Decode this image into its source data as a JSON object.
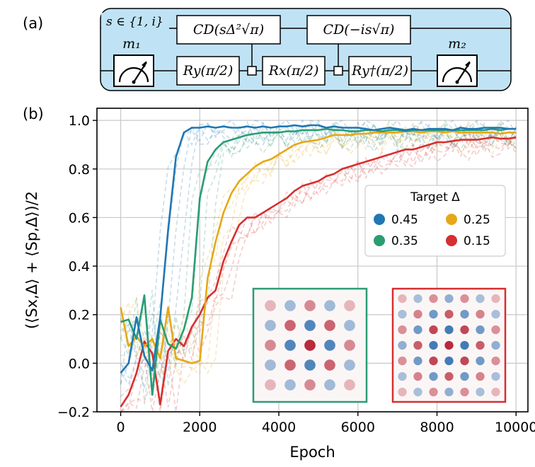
{
  "panel_a": {
    "label": "(a)",
    "register_label": "s ∈ {1, i}",
    "measure_left": "m₁",
    "measure_right": "m₂",
    "gate_cd1": "CD(sΔ²√π)",
    "gate_cd2": "CD(−is√π)",
    "gate_ry": "Ry(π/2)",
    "gate_rx": "Rx(π/2)",
    "gate_ry_dag": "Ry†(π/2)"
  },
  "panel_b": {
    "label": "(b)"
  },
  "colors": {
    "blue": "#1f77b4",
    "green": "#2a9d73",
    "gold": "#e6a817",
    "red": "#d62f2f",
    "circuit_fill": "#bfe3f5"
  },
  "chart_data": {
    "type": "line",
    "xlabel": "Epoch",
    "ylabel": "(⟨Sx,Δ⟩ + ⟨Sp,Δ⟩)/2",
    "xlim": [
      -600,
      10300
    ],
    "ylim": [
      -0.2,
      1.05
    ],
    "xticks": [
      0,
      2000,
      4000,
      6000,
      8000,
      10000
    ],
    "yticks": [
      -0.2,
      0.0,
      0.2,
      0.4,
      0.6,
      0.8,
      1.0
    ],
    "ytick_labels": [
      "−0.2",
      "0.0",
      "0.2",
      "0.4",
      "0.6",
      "0.8",
      "1.0"
    ],
    "grid": true,
    "legend": {
      "title": "Target Δ",
      "placement": "center-right"
    },
    "x": [
      0,
      200,
      400,
      600,
      800,
      1000,
      1200,
      1400,
      1600,
      1800,
      2000,
      2200,
      2400,
      2600,
      2800,
      3000,
      3200,
      3400,
      3600,
      3800,
      4000,
      4200,
      4400,
      4600,
      4800,
      5000,
      5200,
      5400,
      5600,
      5800,
      6000,
      6200,
      6400,
      6600,
      6800,
      7000,
      7200,
      7400,
      7600,
      7800,
      8000,
      8200,
      8400,
      8600,
      8800,
      9000,
      9200,
      9400,
      9600,
      9800,
      10000
    ],
    "series": [
      {
        "name": "0.45",
        "color": "#1f77b4",
        "values": [
          -0.04,
          0.0,
          0.19,
          0.03,
          -0.03,
          0.19,
          0.55,
          0.85,
          0.95,
          0.97,
          0.97,
          0.975,
          0.97,
          0.975,
          0.97,
          0.97,
          0.975,
          0.97,
          0.975,
          0.97,
          0.975,
          0.975,
          0.98,
          0.975,
          0.98,
          0.98,
          0.97,
          0.975,
          0.97,
          0.97,
          0.97,
          0.965,
          0.96,
          0.965,
          0.97,
          0.965,
          0.96,
          0.965,
          0.96,
          0.965,
          0.965,
          0.965,
          0.96,
          0.97,
          0.965,
          0.965,
          0.97,
          0.97,
          0.97,
          0.965,
          0.965
        ]
      },
      {
        "name": "0.35",
        "color": "#2a9d73",
        "values": [
          0.17,
          0.18,
          0.1,
          0.28,
          -0.13,
          0.18,
          0.08,
          0.06,
          0.14,
          0.27,
          0.68,
          0.83,
          0.88,
          0.91,
          0.92,
          0.93,
          0.94,
          0.945,
          0.95,
          0.95,
          0.95,
          0.955,
          0.955,
          0.96,
          0.96,
          0.96,
          0.965,
          0.96,
          0.96,
          0.955,
          0.955,
          0.96,
          0.96,
          0.955,
          0.96,
          0.96,
          0.955,
          0.96,
          0.96,
          0.96,
          0.96,
          0.96,
          0.96,
          0.96,
          0.96,
          0.96,
          0.96,
          0.965,
          0.96,
          0.965,
          0.965
        ]
      },
      {
        "name": "0.25",
        "color": "#e6a817",
        "values": [
          0.23,
          0.07,
          0.11,
          0.07,
          0.1,
          0.02,
          0.23,
          0.02,
          0.01,
          0.0,
          0.01,
          0.35,
          0.5,
          0.62,
          0.7,
          0.75,
          0.78,
          0.81,
          0.83,
          0.84,
          0.86,
          0.88,
          0.9,
          0.91,
          0.915,
          0.92,
          0.93,
          0.94,
          0.94,
          0.94,
          0.945,
          0.945,
          0.95,
          0.95,
          0.95,
          0.95,
          0.955,
          0.955,
          0.95,
          0.955,
          0.955,
          0.95,
          0.955,
          0.95,
          0.95,
          0.95,
          0.95,
          0.95,
          0.945,
          0.95,
          0.95
        ]
      },
      {
        "name": "0.15",
        "color": "#d62f2f",
        "values": [
          -0.18,
          -0.13,
          -0.04,
          0.09,
          0.04,
          -0.17,
          0.05,
          0.1,
          0.07,
          0.15,
          0.2,
          0.27,
          0.3,
          0.42,
          0.5,
          0.57,
          0.6,
          0.6,
          0.62,
          0.64,
          0.66,
          0.68,
          0.71,
          0.73,
          0.74,
          0.75,
          0.77,
          0.78,
          0.8,
          0.81,
          0.82,
          0.83,
          0.84,
          0.85,
          0.86,
          0.87,
          0.88,
          0.88,
          0.89,
          0.9,
          0.91,
          0.91,
          0.915,
          0.92,
          0.92,
          0.92,
          0.925,
          0.93,
          0.925,
          0.925,
          0.93
        ]
      }
    ]
  }
}
